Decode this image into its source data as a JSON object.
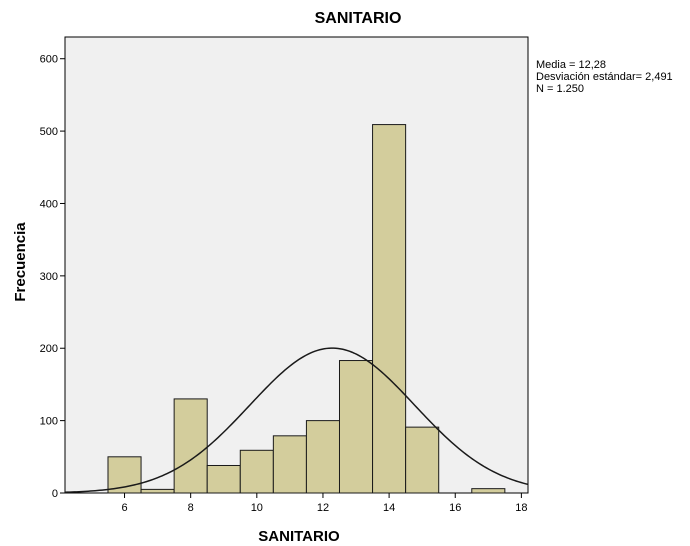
{
  "chart_data": {
    "type": "bar",
    "title": "SANITARIO",
    "xlabel": "SANITARIO",
    "ylabel": "Frecuencia",
    "xlim": [
      4.2,
      18.2
    ],
    "ylim": [
      0,
      630
    ],
    "x_ticks": [
      6,
      8,
      10,
      12,
      14,
      16,
      18
    ],
    "y_ticks": [
      0,
      100,
      200,
      300,
      400,
      500,
      600
    ],
    "bin_width": 1,
    "bins": [
      {
        "start": 5.5,
        "end": 6.5,
        "value": 50
      },
      {
        "start": 6.5,
        "end": 7.5,
        "value": 5
      },
      {
        "start": 7.5,
        "end": 8.5,
        "value": 130
      },
      {
        "start": 8.5,
        "end": 9.5,
        "value": 38
      },
      {
        "start": 9.5,
        "end": 10.5,
        "value": 59
      },
      {
        "start": 10.5,
        "end": 11.5,
        "value": 79
      },
      {
        "start": 11.5,
        "end": 12.5,
        "value": 100
      },
      {
        "start": 12.5,
        "end": 13.5,
        "value": 183
      },
      {
        "start": 13.5,
        "end": 14.5,
        "value": 509
      },
      {
        "start": 14.5,
        "end": 15.5,
        "value": 91
      },
      {
        "start": 16.5,
        "end": 17.5,
        "value": 6
      }
    ],
    "normal_curve": {
      "mean": 12.28,
      "sd": 2.491,
      "n": 1250,
      "bin_width": 1
    },
    "stats": [
      "Media = 12,28",
      "Desviación estándar= 2,491",
      "N = 1.250"
    ],
    "grid": false,
    "colors": {
      "plot_background": "#f0f0f0",
      "bar_fill": "#d3cd9c",
      "bar_stroke": "#1a1a1a",
      "curve": "#1a1a1a",
      "axis": "#000000"
    }
  }
}
